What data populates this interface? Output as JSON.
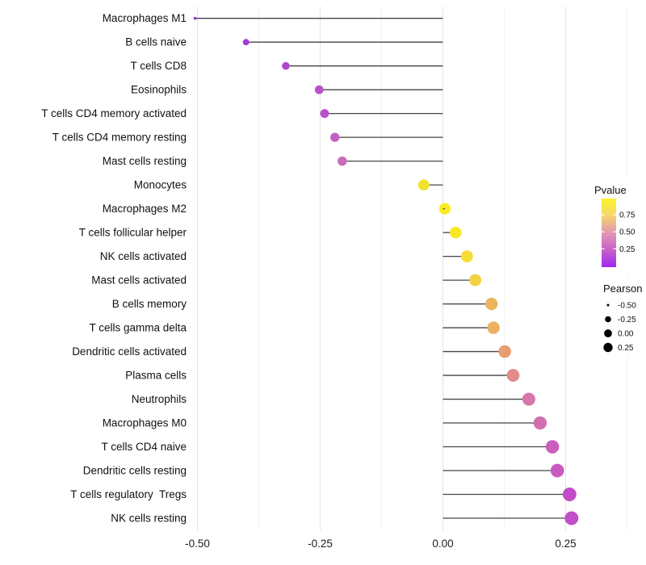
{
  "chart_data": {
    "type": "scatter",
    "variant": "lollipop",
    "title": "",
    "xlabel": "",
    "ylabel": "",
    "grid": "vertical-major-and-minor",
    "legend_position": "right",
    "xlim": [
      -0.545,
      0.395
    ],
    "x_ticks": {
      "values": [
        -0.5,
        -0.25,
        0.0,
        0.25
      ],
      "labels": [
        "-0.50",
        "-0.25",
        "0.00",
        "0.25"
      ]
    },
    "x_minor_gridlines": [
      -0.375,
      -0.125,
      0.125,
      0.375
    ],
    "categories": [
      "Macrophages M1",
      "B cells naive",
      "T cells CD8",
      "Eosinophils",
      "T cells CD4 memory activated",
      "T cells CD4 memory resting",
      "Mast cells resting",
      "Monocytes",
      "Macrophages M2",
      "T cells follicular helper",
      "NK cells activated",
      "Mast cells activated",
      "B cells memory",
      "T cells gamma delta",
      "Dendritic cells activated",
      "Plasma cells",
      "Neutrophils",
      "Macrophages M0",
      "T cells CD4 naive",
      "Dendritic cells resting",
      "T cells regulatory  Tregs",
      "NK cells resting"
    ],
    "series": [
      {
        "name": "Pearson",
        "values": [
          -0.505,
          -0.401,
          -0.32,
          -0.252,
          -0.241,
          -0.22,
          -0.205,
          -0.039,
          0.004,
          0.026,
          0.049,
          0.066,
          0.099,
          0.103,
          0.126,
          0.143,
          0.175,
          0.198,
          0.223,
          0.233,
          0.258,
          0.262
        ]
      }
    ],
    "point_colors": [
      "#9130E1",
      "#A43AD8",
      "#AF47CF",
      "#B953C8",
      "#B750CA",
      "#C262C0",
      "#C76CBB",
      "#F2E12E",
      "#FBEC21",
      "#F9E828",
      "#F6DD35",
      "#F1D243",
      "#ECB45F",
      "#EBB261",
      "#E89E73",
      "#E28B8A",
      "#D678A9",
      "#D26FB1",
      "#CB5EBD",
      "#C95AC0",
      "#C34DC8",
      "#C24FCA"
    ],
    "colors": {
      "stem": "#454545",
      "grid_major": "#E4E4E4",
      "grid_minor": "#F2F2F2",
      "axis_text": "#1c1c1c",
      "background": "#FFFFFF"
    },
    "legend_pvalue": {
      "title": "Pvalue",
      "tick_labels": [
        "0.75",
        "0.50",
        "0.25"
      ],
      "tick_values": [
        0.75,
        0.5,
        0.25
      ],
      "range": [
        -0.02,
        0.99
      ],
      "gradient": [
        {
          "p": 1.0,
          "color": "#FBF32B"
        },
        {
          "p": 0.75,
          "color": "#F6D869"
        },
        {
          "p": 0.5,
          "color": "#E29AB2"
        },
        {
          "p": 0.25,
          "color": "#CA64C6"
        },
        {
          "p": 0.0,
          "color": "#A32BF0"
        }
      ]
    },
    "legend_pearson": {
      "title": "Pearson",
      "labels": [
        "-0.50",
        "-0.25",
        "0.00",
        "0.25"
      ],
      "values": [
        -0.5,
        -0.25,
        0.0,
        0.25
      ],
      "dot_color": "#000000"
    }
  }
}
